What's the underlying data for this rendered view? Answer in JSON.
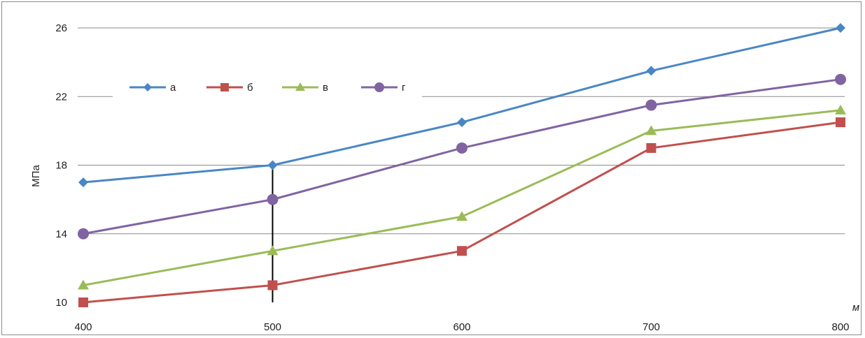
{
  "chart_data": {
    "type": "line",
    "x": [
      400,
      500,
      600,
      700,
      800
    ],
    "xlim": [
      400,
      800
    ],
    "ylim": [
      10,
      26
    ],
    "y_ticks": [
      10,
      14,
      18,
      22,
      26
    ],
    "x_ticks": [
      400,
      500,
      600,
      700,
      800
    ],
    "ylabel": "МПа",
    "xlabel": "м",
    "grid": "horizontal major gridlines",
    "legend_position": "top-left",
    "series": [
      {
        "name": "а",
        "color": "#4a86c5",
        "marker": "diamond",
        "values": [
          17,
          18,
          20.5,
          23.5,
          26
        ]
      },
      {
        "name": "б",
        "color": "#c0504d",
        "marker": "square",
        "values": [
          10,
          11,
          13,
          19,
          20.5
        ]
      },
      {
        "name": "в",
        "color": "#9bbb59",
        "marker": "triangle",
        "values": [
          11,
          13,
          15,
          20,
          21.2
        ]
      },
      {
        "name": "г",
        "color": "#8064a2",
        "marker": "circle",
        "values": [
          14,
          16,
          19,
          21.5,
          23
        ]
      }
    ],
    "annotations": [
      {
        "type": "vertical-line",
        "x": 500,
        "y_from": 10,
        "y_to": 18,
        "color": "#000000"
      }
    ]
  }
}
